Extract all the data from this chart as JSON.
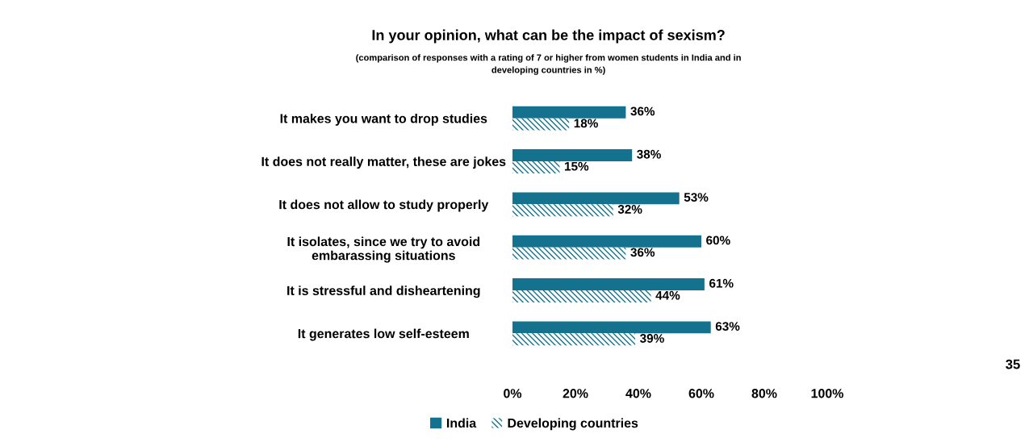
{
  "chart_data": {
    "type": "bar",
    "orientation": "horizontal",
    "title": "In your opinion, what can be the impact of sexism?",
    "subtitle": "(comparison of responses with a rating of 7 or higher from women students in India and in\ndeveloping countries in %)",
    "categories": [
      "It makes you want to drop studies",
      "It does not really matter, these are jokes",
      "It does not allow to study properly",
      "It isolates, since we try to avoid\nembarassing situations",
      "It is stressful and disheartening",
      "It generates low self-esteem"
    ],
    "series": [
      {
        "name": "India",
        "color": "#14728f",
        "values": [
          36,
          38,
          53,
          60,
          61,
          63
        ],
        "value_labels": [
          "36%",
          "38%",
          "53%",
          "60%",
          "61%",
          "63%"
        ]
      },
      {
        "name": "Developing countries",
        "color": "#14728f",
        "values": [
          18,
          15,
          32,
          36,
          44,
          39
        ],
        "value_labels": [
          "18%",
          "15%",
          "32%",
          "36%",
          "44%",
          "39%"
        ]
      }
    ],
    "xlim": [
      0,
      100
    ],
    "xticks": [
      {
        "value": 0,
        "label": "0%"
      },
      {
        "value": 20,
        "label": "20%"
      },
      {
        "value": 40,
        "label": "40%"
      },
      {
        "value": 60,
        "label": "60%"
      },
      {
        "value": 80,
        "label": "80%"
      },
      {
        "value": 100,
        "label": "100%"
      }
    ],
    "grid": false,
    "legend": "bottom",
    "annotations": [
      "35"
    ]
  }
}
